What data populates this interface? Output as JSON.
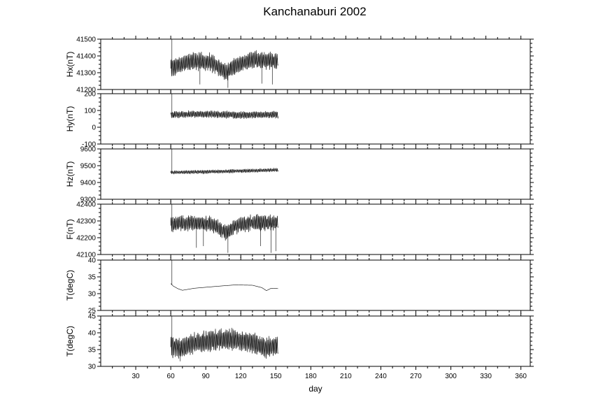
{
  "chart_data": {
    "type": "line",
    "title": "Kanchanaburi 2002",
    "xlabel": "day",
    "xlim": [
      0,
      368
    ],
    "x_ticks": [
      30,
      60,
      90,
      120,
      150,
      180,
      210,
      240,
      270,
      300,
      330,
      360
    ],
    "panels": [
      {
        "ylabel": "Hx(nT)",
        "ylim": [
          41200,
          41500
        ],
        "y_ticks": [
          41200,
          41300,
          41400,
          41500
        ],
        "x_range": [
          60,
          152
        ],
        "baseline": [
          [
            60,
            41330
          ],
          [
            80,
            41370
          ],
          [
            95,
            41360
          ],
          [
            108,
            41300
          ],
          [
            112,
            41330
          ],
          [
            130,
            41380
          ],
          [
            152,
            41370
          ]
        ],
        "amplitude": 50,
        "spikes": [
          [
            61,
            41500
          ],
          [
            85,
            41230
          ],
          [
            109,
            41210
          ],
          [
            138,
            41235
          ],
          [
            147,
            41230
          ]
        ]
      },
      {
        "ylabel": "Hy(nT)",
        "ylim": [
          -100,
          200
        ],
        "y_ticks": [
          -100,
          0,
          100,
          200
        ],
        "x_range": [
          60,
          152
        ],
        "baseline": [
          [
            60,
            75
          ],
          [
            90,
            78
          ],
          [
            120,
            72
          ],
          [
            152,
            75
          ]
        ],
        "amplitude": 20,
        "spikes": [
          [
            61,
            200
          ],
          [
            62,
            60
          ]
        ]
      },
      {
        "ylabel": "Hz(nT)",
        "ylim": [
          9300,
          9600
        ],
        "y_ticks": [
          9300,
          9400,
          9500,
          9600
        ],
        "x_range": [
          60,
          152
        ],
        "baseline": [
          [
            60,
            9460
          ],
          [
            100,
            9465
          ],
          [
            152,
            9475
          ]
        ],
        "amplitude": 10,
        "spikes": [
          [
            61,
            9600
          ]
        ]
      },
      {
        "ylabel": "F(nT)",
        "ylim": [
          42100,
          42400
        ],
        "y_ticks": [
          42100,
          42200,
          42300,
          42400
        ],
        "x_range": [
          60,
          152
        ],
        "baseline": [
          [
            60,
            42280
          ],
          [
            80,
            42290
          ],
          [
            95,
            42280
          ],
          [
            108,
            42230
          ],
          [
            115,
            42270
          ],
          [
            130,
            42290
          ],
          [
            152,
            42290
          ]
        ],
        "amplitude": 45,
        "spikes": [
          [
            61,
            42400
          ],
          [
            82,
            42140
          ],
          [
            88,
            42150
          ],
          [
            109,
            42110
          ],
          [
            137,
            42150
          ],
          [
            146,
            42110
          ],
          [
            150,
            42120
          ]
        ]
      },
      {
        "ylabel": "T(degC)",
        "ylim": [
          25,
          40
        ],
        "y_ticks": [
          25,
          30,
          35,
          40
        ],
        "x_range": [
          60,
          152
        ],
        "baseline": [
          [
            60,
            33
          ],
          [
            62,
            32.3
          ],
          [
            66,
            31.5
          ],
          [
            70,
            31
          ],
          [
            80,
            31.6
          ],
          [
            100,
            32.2
          ],
          [
            115,
            32.6
          ],
          [
            130,
            32.5
          ],
          [
            138,
            31.8
          ],
          [
            142,
            30.9
          ],
          [
            146,
            31.6
          ],
          [
            152,
            31.5
          ]
        ],
        "amplitude": 0,
        "spikes": [
          [
            61,
            40
          ]
        ]
      },
      {
        "ylabel": "T(degC)",
        "ylim": [
          30,
          45
        ],
        "y_ticks": [
          30,
          35,
          40,
          45
        ],
        "x_range": [
          60,
          152
        ],
        "baseline": [
          [
            60,
            36
          ],
          [
            70,
            35.5
          ],
          [
            80,
            37
          ],
          [
            100,
            38
          ],
          [
            115,
            38
          ],
          [
            130,
            37
          ],
          [
            140,
            35.5
          ],
          [
            152,
            36
          ]
        ],
        "amplitude": 3,
        "spikes": [
          [
            61,
            45
          ],
          [
            68,
            31.5
          ]
        ]
      }
    ]
  }
}
